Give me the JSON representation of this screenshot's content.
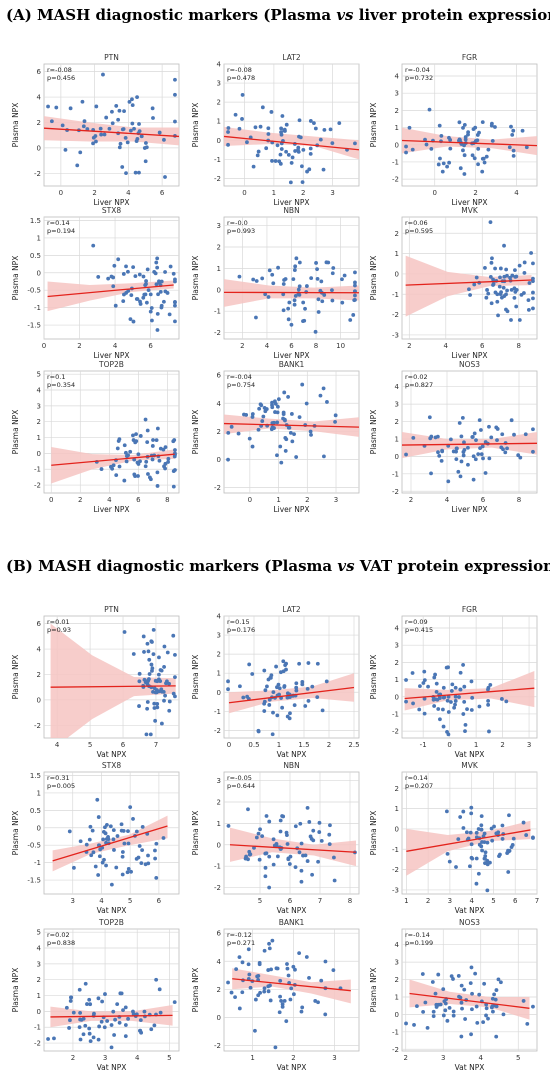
{
  "sections": [
    {
      "id": "A",
      "title_prefix": "(A) MASH diagnostic markers (Plasma ",
      "title_vs": "vs",
      "title_suffix": " liver protein expression)",
      "xlabel": "Liver NPX",
      "ylabel": "Plasma NPX"
    },
    {
      "id": "B",
      "title_prefix": "(B) MASH diagnostic markers (Plasma ",
      "title_vs": "vs",
      "title_suffix": " VAT protein expression)",
      "xlabel": "Vat NPX",
      "ylabel": "Plasma NPX"
    }
  ],
  "colors": {
    "points": "#4a76b5",
    "line": "#e3231c",
    "band": "#f6c4c2",
    "grid": "#d9d9d9"
  },
  "chart_data": [
    {
      "type": "scatter",
      "section": "A",
      "title": "PTN",
      "r": "r=-0.08",
      "p": "p=0.456",
      "xlim": [
        -1,
        7
      ],
      "ylim": [
        -3,
        6.6
      ],
      "xticks": [
        0,
        2,
        4,
        6
      ],
      "yticks": [
        -2,
        0,
        2,
        4,
        6
      ],
      "fit": [
        [
          -1,
          1.55
        ],
        [
          7,
          0.9
        ]
      ],
      "band_lo": [
        0.6,
        0.5,
        0.5,
        0.2
      ],
      "band_hi": [
        2.5,
        2.0,
        1.6,
        1.6
      ],
      "seed": 1,
      "mx": 3.0,
      "sx": 1.8,
      "my": 1.0,
      "sy": 1.8
    },
    {
      "type": "scatter",
      "section": "A",
      "title": "LAT2",
      "r": "r=-0.08",
      "p": "p=0.478",
      "xlim": [
        -0.7,
        3.9
      ],
      "ylim": [
        -2.4,
        4
      ],
      "xticks": [
        0,
        1,
        2,
        3
      ],
      "yticks": [
        -2,
        -1,
        0,
        1,
        2,
        3,
        4
      ],
      "fit": [
        [
          -0.7,
          0.2
        ],
        [
          3.9,
          -0.5
        ]
      ],
      "band_lo": [
        -0.3,
        -0.2,
        -0.3,
        -1.0
      ],
      "band_hi": [
        0.7,
        0.4,
        0.2,
        0.0
      ],
      "seed": 2,
      "mx": 1.5,
      "sx": 1.0,
      "my": -0.1,
      "sy": 0.9
    },
    {
      "type": "scatter",
      "section": "A",
      "title": "FGR",
      "r": "r=-0.04",
      "p": "p=0.732",
      "xlim": [
        -1.6,
        5
      ],
      "ylim": [
        -2.4,
        4.7
      ],
      "xticks": [
        0,
        2,
        4
      ],
      "yticks": [
        -2,
        -1,
        0,
        1,
        2,
        3,
        4
      ],
      "fit": [
        [
          -1.6,
          0.25
        ],
        [
          5,
          -0.05
        ]
      ],
      "band_lo": [
        -0.5,
        -0.1,
        -0.2,
        -0.6
      ],
      "band_hi": [
        1.0,
        0.5,
        0.3,
        0.5
      ],
      "seed": 3,
      "mx": 1.5,
      "sx": 1.3,
      "my": 0.1,
      "sy": 0.9
    },
    {
      "type": "scatter",
      "section": "A",
      "title": "STX8",
      "r": "r=0.14",
      "p": "p=0.194",
      "xlim": [
        0,
        7.6
      ],
      "ylim": [
        -1.9,
        1.6
      ],
      "xticks": [
        0,
        2,
        4,
        6
      ],
      "yticks": [
        -1.5,
        -1.0,
        -0.5,
        0.0,
        0.5,
        1.0,
        1.5
      ],
      "fit": [
        [
          0.2,
          -0.68
        ],
        [
          7.3,
          -0.35
        ]
      ],
      "band_lo": [
        -1.1,
        -0.8,
        -0.55,
        -0.45
      ],
      "band_hi": [
        -0.25,
        -0.35,
        -0.3,
        -0.22
      ],
      "seed": 4,
      "mx": 5.8,
      "sx": 1.2,
      "my": -0.45,
      "sy": 0.5
    },
    {
      "type": "scatter",
      "section": "A",
      "title": "NBN",
      "r": "r=-0.0",
      "p": "p=0.993",
      "xlim": [
        0.5,
        11.5
      ],
      "ylim": [
        -2.3,
        3.4
      ],
      "xticks": [
        2,
        4,
        6,
        8,
        10
      ],
      "yticks": [
        -2,
        -1,
        0,
        1,
        2,
        3
      ],
      "fit": [
        [
          0.5,
          -0.12
        ],
        [
          11.5,
          -0.14
        ]
      ],
      "band_lo": [
        -0.8,
        -0.4,
        -0.4,
        -0.5
      ],
      "band_hi": [
        0.5,
        0.2,
        0.1,
        0.2
      ],
      "seed": 5,
      "mx": 7.0,
      "sx": 2.5,
      "my": -0.1,
      "sy": 0.9
    },
    {
      "type": "scatter",
      "section": "A",
      "title": "MVK",
      "r": "r=0.06",
      "p": "p=0.595",
      "xlim": [
        1.6,
        9
      ],
      "ylim": [
        -3.2,
        2.8
      ],
      "xticks": [
        2,
        4,
        6,
        8
      ],
      "yticks": [
        -3,
        -2,
        -1,
        0,
        1,
        2
      ],
      "fit": [
        [
          1.8,
          -0.55
        ],
        [
          8.7,
          -0.3
        ]
      ],
      "band_lo": [
        -2.1,
        -1.1,
        -0.6,
        -0.55
      ],
      "band_hi": [
        0.9,
        0.1,
        -0.15,
        -0.05
      ],
      "seed": 6,
      "mx": 7.3,
      "sx": 0.9,
      "my": -0.5,
      "sy": 0.8
    },
    {
      "type": "scatter",
      "section": "A",
      "title": "TOP2B",
      "r": "r=0.1",
      "p": "p=0.354",
      "xlim": [
        -0.5,
        8.8
      ],
      "ylim": [
        -2.5,
        5.2
      ],
      "xticks": [
        0,
        2,
        4,
        6,
        8
      ],
      "yticks": [
        -2,
        -1,
        0,
        1,
        2,
        3,
        4,
        5
      ],
      "fit": [
        [
          0,
          -0.75
        ],
        [
          8.5,
          -0.05
        ]
      ],
      "band_lo": [
        -1.9,
        -1.0,
        -0.45,
        -0.35
      ],
      "band_hi": [
        0.4,
        -0.05,
        -0.1,
        0.25
      ],
      "seed": 7,
      "mx": 6.6,
      "sx": 1.4,
      "my": -0.2,
      "sy": 0.9
    },
    {
      "type": "scatter",
      "section": "A",
      "title": "BANK1",
      "r": "r=-0.04",
      "p": "p=0.754",
      "xlim": [
        -0.9,
        3.8
      ],
      "ylim": [
        -2.4,
        6.3
      ],
      "xticks": [
        0,
        1,
        2,
        3
      ],
      "yticks": [
        -2,
        0,
        2,
        4,
        6
      ],
      "fit": [
        [
          -0.9,
          2.55
        ],
        [
          3.8,
          2.3
        ]
      ],
      "band_lo": [
        1.8,
        2.2,
        2.0,
        1.6
      ],
      "band_hi": [
        3.2,
        2.9,
        2.7,
        3.0
      ],
      "seed": 8,
      "mx": 1.1,
      "sx": 0.9,
      "my": 2.5,
      "sy": 1.4
    },
    {
      "type": "scatter",
      "section": "A",
      "title": "NOS3",
      "r": "r=0.02",
      "p": "p=0.827",
      "xlim": [
        1.5,
        9
      ],
      "ylim": [
        -2.1,
        4.9
      ],
      "xticks": [
        2,
        4,
        6,
        8
      ],
      "yticks": [
        -2,
        -1,
        0,
        1,
        2,
        3,
        4
      ],
      "fit": [
        [
          1.5,
          0.65
        ],
        [
          9,
          0.75
        ]
      ],
      "band_lo": [
        -0.1,
        0.4,
        0.5,
        0.1
      ],
      "band_hi": [
        1.4,
        1.0,
        1.0,
        1.4
      ],
      "seed": 9,
      "mx": 5.3,
      "sx": 1.8,
      "my": 0.7,
      "sy": 0.9
    },
    {
      "type": "scatter",
      "section": "B",
      "title": "PTN",
      "r": "r=0.01",
      "p": "p=0.93",
      "xlim": [
        3.6,
        7.7
      ],
      "ylim": [
        -3,
        6.6
      ],
      "xticks": [
        4,
        5,
        6,
        7
      ],
      "yticks": [
        -2,
        0,
        2,
        4,
        6
      ],
      "fit": [
        [
          3.8,
          1.0
        ],
        [
          7.6,
          1.1
        ]
      ],
      "band_lo": [
        -4,
        -1.5,
        0.3,
        0.5
      ],
      "band_hi": [
        6,
        3.5,
        1.8,
        1.7
      ],
      "seed": 10,
      "mx": 7.0,
      "sx": 0.3,
      "my": 1.0,
      "sy": 1.8
    },
    {
      "type": "scatter",
      "section": "B",
      "title": "LAT2",
      "r": "r=0.15",
      "p": "p=0.176",
      "xlim": [
        -0.1,
        2.6
      ],
      "ylim": [
        -2.4,
        4
      ],
      "xticks": [
        0.0,
        0.5,
        1.0,
        1.5,
        2.0,
        2.5
      ],
      "yticks": [
        -2,
        -1,
        0,
        1,
        2,
        3,
        4
      ],
      "fit": [
        [
          0.0,
          -0.55
        ],
        [
          2.5,
          0.25
        ]
      ],
      "band_lo": [
        -1.1,
        -0.5,
        -0.3,
        -0.5
      ],
      "band_hi": [
        0.0,
        0.1,
        0.3,
        1.0
      ],
      "seed": 11,
      "mx": 1.0,
      "sx": 0.45,
      "my": -0.1,
      "sy": 0.9
    },
    {
      "type": "scatter",
      "section": "B",
      "title": "FGR",
      "r": "r=0.09",
      "p": "p=0.415",
      "xlim": [
        -1.8,
        3.3
      ],
      "ylim": [
        -2.4,
        4.7
      ],
      "xticks": [
        -1,
        0,
        1,
        2,
        3
      ],
      "yticks": [
        -2,
        -1,
        0,
        1,
        2,
        3,
        4
      ],
      "fit": [
        [
          -1.7,
          -0.1
        ],
        [
          3.2,
          0.5
        ]
      ],
      "band_lo": [
        -0.8,
        -0.2,
        -0.1,
        -0.6
      ],
      "band_hi": [
        0.5,
        0.4,
        0.5,
        1.5
      ],
      "seed": 12,
      "mx": 0.0,
      "sx": 0.8,
      "my": 0.1,
      "sy": 0.9
    },
    {
      "type": "scatter",
      "section": "B",
      "title": "STX8",
      "r": "r=0.31",
      "p": "p=0.005",
      "xlim": [
        2.0,
        6.7
      ],
      "ylim": [
        -1.9,
        1.6
      ],
      "xticks": [
        3,
        4,
        5,
        6
      ],
      "yticks": [
        -1.5,
        -1.0,
        -0.5,
        0.0,
        0.5,
        1.0,
        1.5
      ],
      "fit": [
        [
          2.3,
          -0.95
        ],
        [
          6.3,
          0.05
        ]
      ],
      "band_lo": [
        -1.25,
        -0.75,
        -0.5,
        -0.3
      ],
      "band_hi": [
        -0.65,
        -0.45,
        -0.2,
        0.35
      ],
      "seed": 13,
      "mx": 4.6,
      "sx": 0.7,
      "my": -0.45,
      "sy": 0.5
    },
    {
      "type": "scatter",
      "section": "B",
      "title": "NBN",
      "r": "r=-0.05",
      "p": "p=0.644",
      "xlim": [
        3.8,
        8.3
      ],
      "ylim": [
        -2.3,
        3.4
      ],
      "xticks": [
        5,
        6,
        7,
        8
      ],
      "yticks": [
        -2,
        -1,
        0,
        1,
        2,
        3
      ],
      "fit": [
        [
          4.0,
          0.0
        ],
        [
          8.2,
          -0.35
        ]
      ],
      "band_lo": [
        -0.8,
        -0.35,
        -0.5,
        -1.0
      ],
      "band_hi": [
        0.8,
        0.3,
        0.0,
        0.2
      ],
      "seed": 14,
      "mx": 6.0,
      "sx": 0.9,
      "my": -0.1,
      "sy": 0.9
    },
    {
      "type": "scatter",
      "section": "B",
      "title": "MVK",
      "r": "r=0.14",
      "p": "p=0.207",
      "xlim": [
        0.8,
        7
      ],
      "ylim": [
        -3.2,
        2.8
      ],
      "xticks": [
        1,
        2,
        3,
        4,
        5,
        6,
        7
      ],
      "yticks": [
        -3,
        -2,
        -1,
        0,
        1,
        2
      ],
      "fit": [
        [
          1.0,
          -1.1
        ],
        [
          6.7,
          -0.05
        ]
      ],
      "band_lo": [
        -2.3,
        -1.1,
        -0.6,
        -0.5
      ],
      "band_hi": [
        0.0,
        -0.3,
        -0.1,
        0.4
      ],
      "seed": 15,
      "mx": 4.8,
      "sx": 0.8,
      "my": -0.5,
      "sy": 0.8
    },
    {
      "type": "scatter",
      "section": "B",
      "title": "TOP2B",
      "r": "r=0.02",
      "p": "p=0.838",
      "xlim": [
        1.1,
        5.3
      ],
      "ylim": [
        -2.5,
        5.2
      ],
      "xticks": [
        2,
        3,
        4,
        5
      ],
      "yticks": [
        -2,
        -1,
        0,
        1,
        2,
        3,
        4,
        5
      ],
      "fit": [
        [
          1.3,
          -0.35
        ],
        [
          5.1,
          -0.25
        ]
      ],
      "band_lo": [
        -1.0,
        -0.6,
        -0.6,
        -0.9
      ],
      "band_hi": [
        0.3,
        0.0,
        0.0,
        0.4
      ],
      "seed": 16,
      "mx": 3.2,
      "sx": 0.9,
      "my": -0.2,
      "sy": 0.9
    },
    {
      "type": "scatter",
      "section": "B",
      "title": "BANK1",
      "r": "r=-0.12",
      "p": "p=0.271",
      "xlim": [
        0.3,
        3.6
      ],
      "ylim": [
        -2.4,
        6.3
      ],
      "xticks": [
        1,
        2,
        3
      ],
      "yticks": [
        -2,
        0,
        2,
        4,
        6
      ],
      "fit": [
        [
          0.5,
          2.75
        ],
        [
          3.4,
          1.9
        ]
      ],
      "band_lo": [
        2.0,
        2.2,
        1.7,
        1.0
      ],
      "band_hi": [
        3.5,
        3.0,
        2.5,
        2.7
      ],
      "seed": 17,
      "mx": 1.7,
      "sx": 0.7,
      "my": 2.5,
      "sy": 1.4
    },
    {
      "type": "scatter",
      "section": "B",
      "title": "NOS3",
      "r": "r=-0.14",
      "p": "p=0.199",
      "xlim": [
        1.9,
        5.5
      ],
      "ylim": [
        -2.1,
        4.9
      ],
      "xticks": [
        2,
        3,
        4,
        5
      ],
      "yticks": [
        -2,
        -1,
        0,
        1,
        2,
        3,
        4
      ],
      "fit": [
        [
          2.1,
          1.2
        ],
        [
          5.3,
          0.35
        ]
      ],
      "band_lo": [
        0.4,
        0.6,
        0.4,
        -0.3
      ],
      "band_hi": [
        2.0,
        1.3,
        1.0,
        1.0
      ],
      "seed": 18,
      "mx": 3.6,
      "sx": 0.7,
      "my": 0.7,
      "sy": 0.9
    }
  ]
}
